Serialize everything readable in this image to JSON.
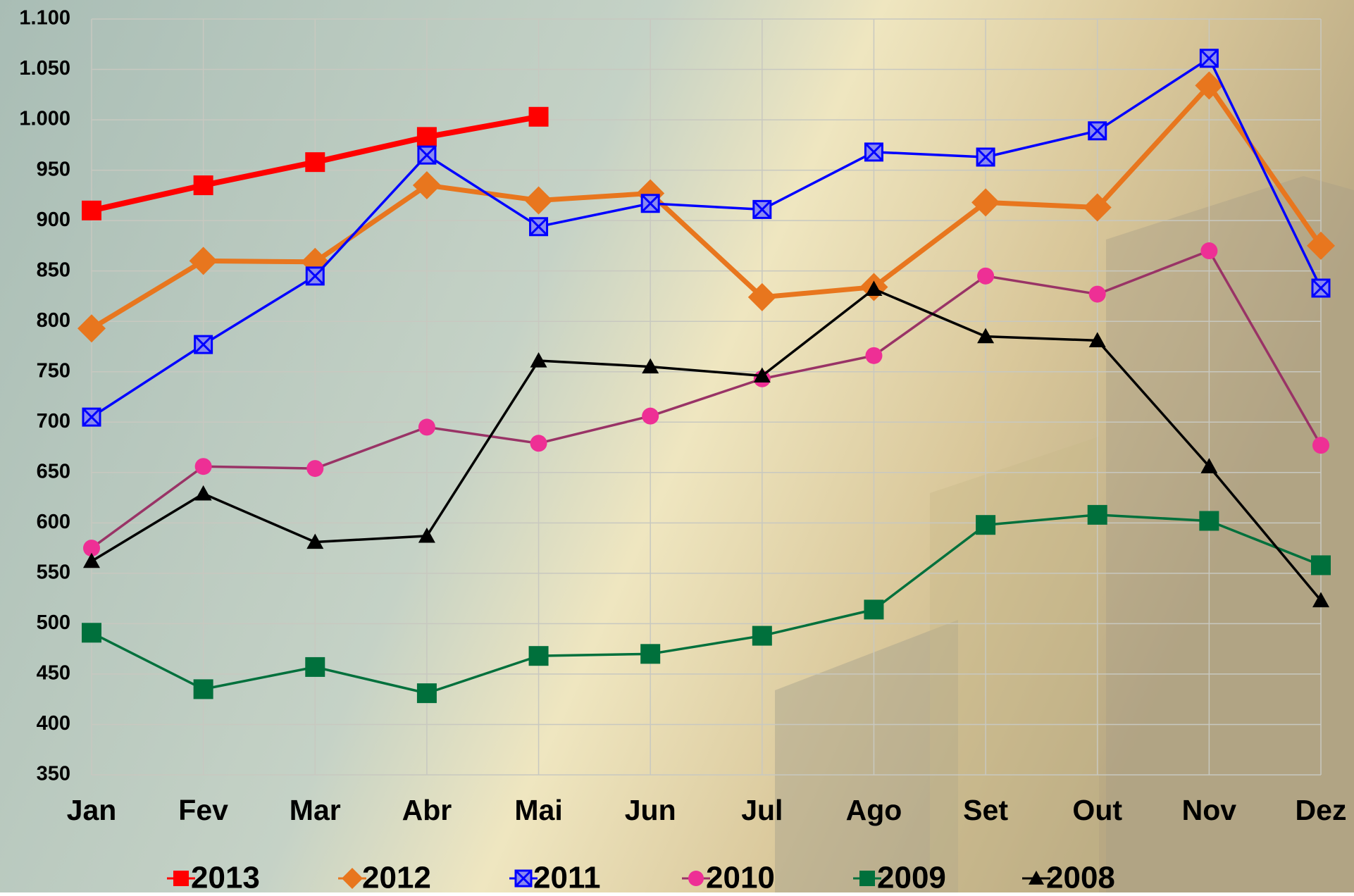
{
  "chart_data": {
    "type": "line",
    "categories": [
      "Jan",
      "Fev",
      "Mar",
      "Abr",
      "Mai",
      "Jun",
      "Jul",
      "Ago",
      "Set",
      "Out",
      "Nov",
      "Dez"
    ],
    "ylim": [
      350,
      1100
    ],
    "yticks": [
      350,
      400,
      450,
      500,
      550,
      600,
      650,
      700,
      750,
      800,
      850,
      900,
      950,
      {
        "value": 1000,
        "label": "1.000"
      },
      {
        "value": 1050,
        "label": "1.050"
      },
      {
        "value": 1100,
        "label": "1.100"
      }
    ],
    "grid": true,
    "legend": "bottom",
    "series": [
      {
        "name": "2013",
        "color": "#ff0000",
        "marker": "square",
        "values": [
          910,
          935,
          958,
          983,
          1003,
          null,
          null,
          null,
          null,
          null,
          null,
          null
        ]
      },
      {
        "name": "2012",
        "color": "#e8761e",
        "marker": "diamond",
        "values": [
          793,
          860,
          859,
          935,
          920,
          927,
          824,
          834,
          918,
          913,
          1034,
          875
        ]
      },
      {
        "name": "2011",
        "color": "#0000ff",
        "marker": "xsquare",
        "values": [
          705,
          777,
          845,
          965,
          894,
          917,
          911,
          968,
          963,
          989,
          1061,
          833
        ]
      },
      {
        "name": "2010",
        "color": "#ee2f95",
        "line_color": "#993366",
        "marker": "circle",
        "values": [
          575,
          656,
          654,
          695,
          679,
          706,
          743,
          766,
          845,
          827,
          870,
          677
        ]
      },
      {
        "name": "2009",
        "color": "#00703c",
        "marker": "square",
        "values": [
          491,
          435,
          457,
          431,
          468,
          470,
          488,
          514,
          598,
          608,
          602,
          558
        ]
      },
      {
        "name": "2008",
        "color": "#000000",
        "marker": "triangle",
        "values": [
          562,
          629,
          581,
          587,
          761,
          755,
          746,
          832,
          785,
          781,
          656,
          523
        ]
      }
    ]
  }
}
